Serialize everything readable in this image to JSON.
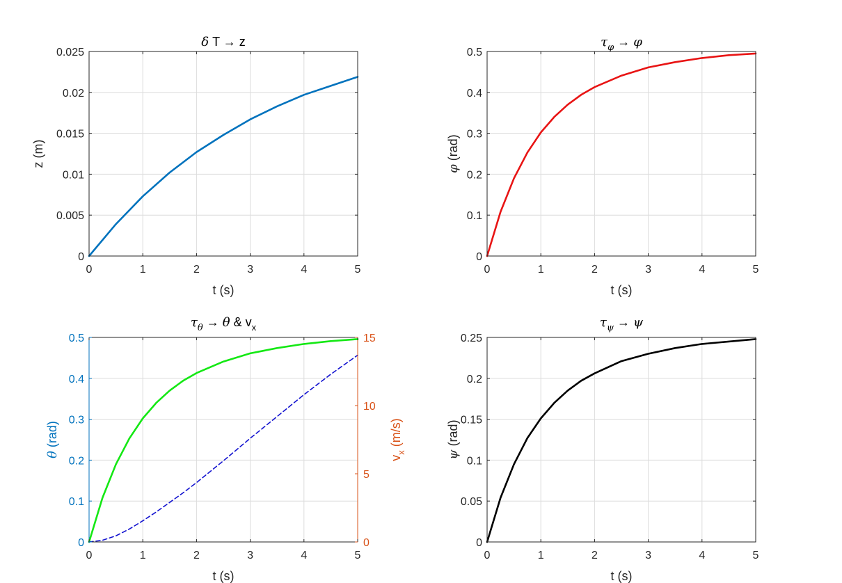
{
  "colors": {
    "axis": "#262626",
    "grid": "#dcdcdc",
    "left_axis_accent": "#0072BD",
    "right_axis_accent": "#D95319"
  },
  "chart_data": [
    {
      "id": "z",
      "type": "line",
      "title": "δ T → z",
      "xlabel": "t (s)",
      "ylabel": "z (m)",
      "xlim": [
        0,
        5
      ],
      "ylim": [
        0,
        0.025
      ],
      "xticks": [
        "0",
        "1",
        "2",
        "3",
        "4",
        "5"
      ],
      "yticks": [
        "0",
        "0.005",
        "0.01",
        "0.015",
        "0.02",
        "0.025"
      ],
      "grid": true,
      "series": [
        {
          "color": "#0072BD",
          "style": "solid",
          "x": [
            0,
            0.5,
            1,
            1.5,
            2,
            2.5,
            3,
            3.5,
            4,
            4.5,
            5
          ],
          "y": [
            0,
            0.0039,
            0.0073,
            0.0102,
            0.0127,
            0.0148,
            0.0167,
            0.0183,
            0.0197,
            0.0208,
            0.0219
          ]
        }
      ]
    },
    {
      "id": "phi",
      "type": "line",
      "title": "τ_φ → φ",
      "xlabel": "t (s)",
      "ylabel": "φ (rad)",
      "xlim": [
        0,
        5
      ],
      "ylim": [
        0,
        0.5
      ],
      "xticks": [
        "0",
        "1",
        "2",
        "3",
        "4",
        "5"
      ],
      "yticks": [
        "0",
        "0.1",
        "0.2",
        "0.3",
        "0.4",
        "0.5"
      ],
      "grid": true,
      "series": [
        {
          "color": "#E81414",
          "style": "solid",
          "x": [
            0,
            0.25,
            0.5,
            0.75,
            1,
            1.25,
            1.5,
            1.75,
            2,
            2.5,
            3,
            3.5,
            4,
            4.5,
            5
          ],
          "y": [
            0,
            0.108,
            0.19,
            0.253,
            0.302,
            0.34,
            0.37,
            0.394,
            0.413,
            0.441,
            0.461,
            0.474,
            0.484,
            0.491,
            0.495
          ]
        }
      ]
    },
    {
      "id": "theta",
      "type": "line",
      "title": "τ_θ → θ & v_x",
      "xlabel": "t (s)",
      "ylabel": "θ (rad)",
      "ylabel_right": "v_x (m/s)",
      "xlim": [
        0,
        5
      ],
      "ylim": [
        0,
        0.5
      ],
      "ylim_right": [
        0,
        15
      ],
      "xticks": [
        "0",
        "1",
        "2",
        "3",
        "4",
        "5"
      ],
      "yticks": [
        "0",
        "0.1",
        "0.2",
        "0.3",
        "0.4",
        "0.5"
      ],
      "yticks_right": [
        "0",
        "5",
        "10",
        "15"
      ],
      "grid": true,
      "series": [
        {
          "color": "#14E814",
          "style": "solid",
          "axis": "left",
          "x": [
            0,
            0.25,
            0.5,
            0.75,
            1,
            1.25,
            1.5,
            1.75,
            2,
            2.5,
            3,
            3.5,
            4,
            4.5,
            5
          ],
          "y": [
            0,
            0.108,
            0.19,
            0.253,
            0.302,
            0.34,
            0.37,
            0.394,
            0.413,
            0.441,
            0.461,
            0.474,
            0.484,
            0.491,
            0.496
          ]
        },
        {
          "color": "#1414D0",
          "style": "dashed",
          "axis": "right",
          "x": [
            0,
            0.25,
            0.5,
            0.75,
            1,
            1.25,
            1.5,
            1.75,
            2,
            2.5,
            3,
            3.5,
            4,
            4.5,
            5
          ],
          "y": [
            0,
            0.12,
            0.45,
            0.95,
            1.55,
            2.2,
            2.9,
            3.6,
            4.35,
            5.95,
            7.6,
            9.2,
            10.8,
            12.3,
            13.7
          ]
        }
      ]
    },
    {
      "id": "psi",
      "type": "line",
      "title": "τ_ψ → ψ",
      "xlabel": "t (s)",
      "ylabel": "ψ (rad)",
      "xlim": [
        0,
        5
      ],
      "ylim": [
        0,
        0.25
      ],
      "xticks": [
        "0",
        "1",
        "2",
        "3",
        "4",
        "5"
      ],
      "yticks": [
        "0",
        "0.05",
        "0.1",
        "0.15",
        "0.2",
        "0.25"
      ],
      "grid": true,
      "series": [
        {
          "color": "#000000",
          "style": "solid",
          "x": [
            0,
            0.25,
            0.5,
            0.75,
            1,
            1.25,
            1.5,
            1.75,
            2,
            2.5,
            3,
            3.5,
            4,
            4.5,
            5
          ],
          "y": [
            0,
            0.054,
            0.095,
            0.127,
            0.151,
            0.17,
            0.185,
            0.197,
            0.206,
            0.221,
            0.23,
            0.237,
            0.242,
            0.245,
            0.248
          ]
        }
      ]
    }
  ]
}
